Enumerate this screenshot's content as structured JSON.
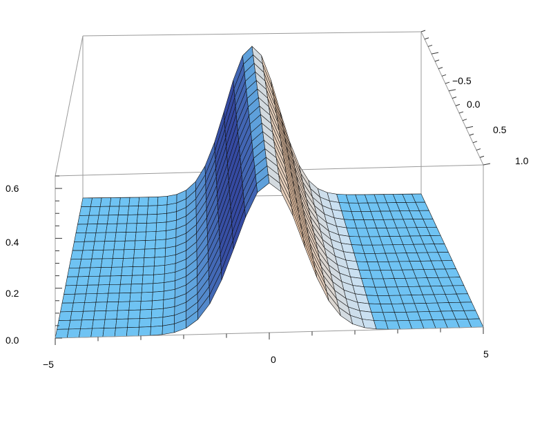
{
  "chart_data": {
    "type": "surface3d",
    "title": "",
    "xlabel": "",
    "ylabel": "",
    "zlabel": "",
    "x_range": [
      -5,
      5
    ],
    "y_range": [
      -0.8,
      1.0
    ],
    "z_range": [
      0.0,
      0.65
    ],
    "x_ticks": [
      "-5",
      "0",
      "5"
    ],
    "y_ticks": [
      "-0.5",
      "0.0",
      "0.5",
      "1.0"
    ],
    "z_ticks": [
      "0.0",
      "0.2",
      "0.4",
      "0.6"
    ],
    "surface": {
      "description_function": "peaked ridge along y, centered near x=0",
      "peak_height": 0.6,
      "peak_x_center": 0.0,
      "ridge_width": 1.1,
      "base_height": 0.0
    },
    "colormap": [
      "#6fc3f3",
      "#2f3f9a",
      "#f3c7a3"
    ],
    "grid": true
  }
}
